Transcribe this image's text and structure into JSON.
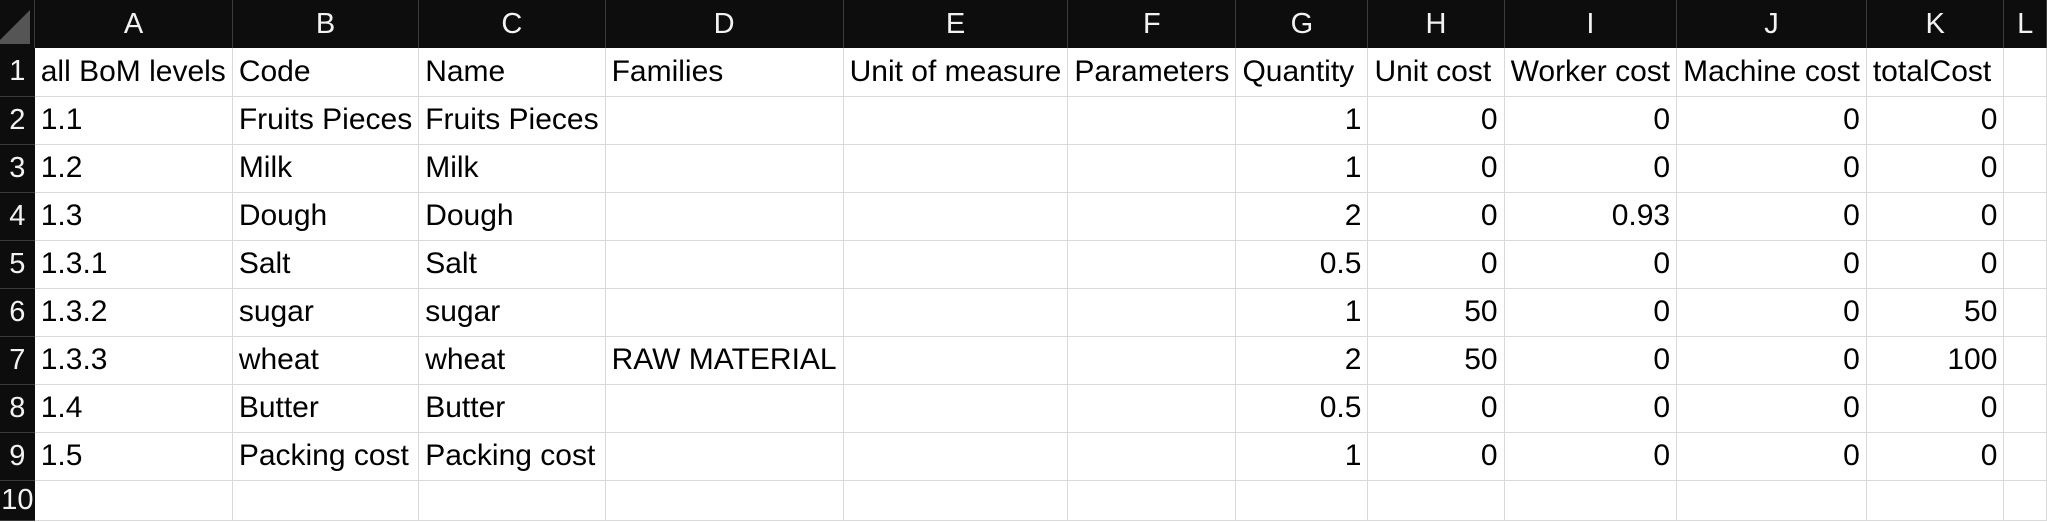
{
  "sheet": {
    "columns": [
      "A",
      "B",
      "C",
      "D",
      "E",
      "F",
      "G",
      "H",
      "I",
      "J",
      "K",
      "L"
    ],
    "row_numbers": [
      "1",
      "2",
      "3",
      "4",
      "5",
      "6",
      "7",
      "8",
      "9",
      "10"
    ],
    "headers": [
      "all BoM levels",
      "Code",
      "Name",
      "Families",
      "Unit of measure",
      "Parameters",
      "Quantity",
      "Unit cost",
      "Worker cost",
      "Machine cost",
      "totalCost",
      ""
    ],
    "rows": [
      [
        "1.1",
        "Fruits Pieces",
        "Fruits Pieces",
        "",
        "",
        "",
        "1",
        "0",
        "0",
        "0",
        "0",
        ""
      ],
      [
        "1.2",
        "Milk",
        "Milk",
        "",
        "",
        "",
        "1",
        "0",
        "0",
        "0",
        "0",
        ""
      ],
      [
        "1.3",
        "Dough",
        "Dough",
        "",
        "",
        "",
        "2",
        "0",
        "0.93",
        "0",
        "0",
        ""
      ],
      [
        "1.3.1",
        "Salt",
        "Salt",
        "",
        "",
        "",
        "0.5",
        "0",
        "0",
        "0",
        "0",
        ""
      ],
      [
        "1.3.2",
        "sugar",
        "sugar",
        "",
        "",
        "",
        "1",
        "50",
        "0",
        "0",
        "50",
        ""
      ],
      [
        "1.3.3",
        "wheat",
        "wheat",
        "RAW MATERIAL",
        "",
        "",
        "2",
        "50",
        "0",
        "0",
        "100",
        ""
      ],
      [
        "1.4",
        "Butter",
        "Butter",
        "",
        "",
        "",
        "0.5",
        "0",
        "0",
        "0",
        "0",
        ""
      ],
      [
        "1.5",
        "Packing cost",
        "Packing cost",
        "",
        "",
        "",
        "1",
        "0",
        "0",
        "0",
        "0",
        ""
      ],
      [
        "",
        "",
        "",
        "",
        "",
        "",
        "",
        "",
        "",
        "",
        "",
        ""
      ]
    ]
  }
}
